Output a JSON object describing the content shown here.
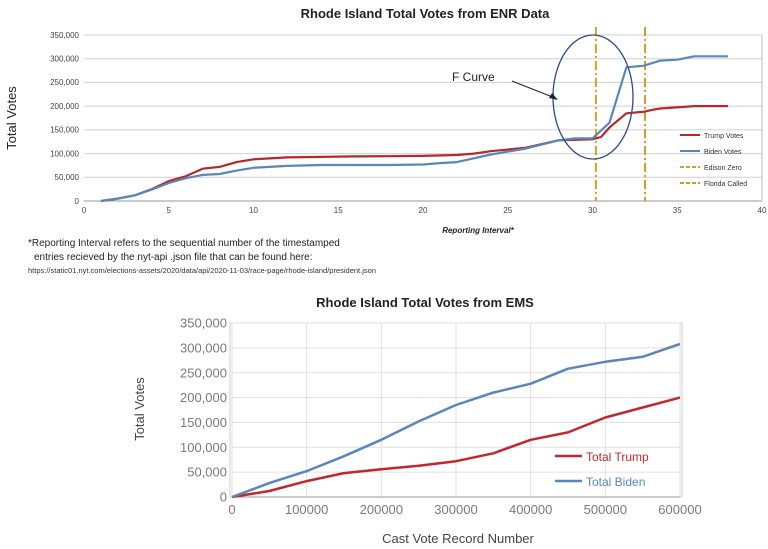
{
  "chart_data": [
    {
      "type": "line",
      "title": "Rhode Island Total Votes from ENR Data",
      "xlabel": "Reporting Interval*",
      "ylabel": "Total Votes",
      "xlim": [
        0,
        40
      ],
      "ylim": [
        0,
        350000
      ],
      "xticks": [
        "0",
        "5",
        "10",
        "15",
        "20",
        "25",
        "30",
        "35",
        "40"
      ],
      "yticks": [
        "0",
        "50,000",
        "100,000",
        "150,000",
        "200,000",
        "250,000",
        "300,000",
        "350,000"
      ],
      "grid": true,
      "legend": "right",
      "series": [
        {
          "name": "Trump Votes",
          "color": "#b5282e",
          "points": [
            [
              1,
              0
            ],
            [
              2,
              5000
            ],
            [
              3,
              12000
            ],
            [
              4,
              25000
            ],
            [
              5,
              42000
            ],
            [
              6,
              52000
            ],
            [
              7,
              68000
            ],
            [
              8,
              72000
            ],
            [
              9,
              82000
            ],
            [
              10,
              88000
            ],
            [
              12,
              92000
            ],
            [
              14,
              93000
            ],
            [
              16,
              94000
            ],
            [
              18,
              94500
            ],
            [
              20,
              95000
            ],
            [
              22,
              97000
            ],
            [
              23,
              100000
            ],
            [
              24,
              105000
            ],
            [
              26,
              112000
            ],
            [
              28,
              128000
            ],
            [
              30,
              130000
            ],
            [
              30.5,
              135000
            ],
            [
              31,
              155000
            ],
            [
              32,
              185000
            ],
            [
              33,
              188000
            ],
            [
              33.5,
              192000
            ],
            [
              34,
              195000
            ],
            [
              36,
              200000
            ],
            [
              38,
              200000
            ]
          ]
        },
        {
          "name": "Biden Votes",
          "color": "#5b86b8",
          "points": [
            [
              1,
              0
            ],
            [
              2,
              5000
            ],
            [
              3,
              12000
            ],
            [
              4,
              24000
            ],
            [
              5,
              38000
            ],
            [
              6,
              48000
            ],
            [
              7,
              55000
            ],
            [
              8,
              57000
            ],
            [
              9,
              64000
            ],
            [
              10,
              70000
            ],
            [
              12,
              74000
            ],
            [
              14,
              76000
            ],
            [
              16,
              76000
            ],
            [
              18,
              76000
            ],
            [
              20,
              77000
            ],
            [
              21,
              80000
            ],
            [
              22,
              82000
            ],
            [
              23,
              90000
            ],
            [
              24,
              98000
            ],
            [
              26,
              110000
            ],
            [
              28,
              128000
            ],
            [
              29,
              132000
            ],
            [
              30,
              132000
            ],
            [
              31,
              165000
            ],
            [
              32,
              282000
            ],
            [
              33,
              285000
            ],
            [
              34,
              296000
            ],
            [
              35,
              298000
            ],
            [
              36,
              305000
            ],
            [
              38,
              305000
            ]
          ]
        }
      ],
      "vlines": [
        {
          "name": "Edison Zero",
          "x": 30.2,
          "color": "#d4a12a"
        },
        {
          "name": "Florida Called",
          "x": 33.1,
          "color": "#d49a20"
        }
      ],
      "annotation": "F Curve"
    },
    {
      "type": "line",
      "title": "Rhode Island Total Votes from EMS",
      "xlabel": "Cast Vote Record Number",
      "ylabel": "Total Votes",
      "xlim": [
        0,
        600000
      ],
      "ylim": [
        0,
        350000
      ],
      "xticks": [
        "0",
        "100000",
        "200000",
        "300000",
        "400000",
        "500000",
        "600000"
      ],
      "yticks": [
        "0",
        "50,000",
        "100,000",
        "150,000",
        "200,000",
        "250,000",
        "300,000",
        "350,000"
      ],
      "grid": true,
      "legend": "bottom-right",
      "series": [
        {
          "name": "Total Trump",
          "color": "#c0282e",
          "points": [
            [
              0,
              0
            ],
            [
              50000,
              12000
            ],
            [
              100000,
              32000
            ],
            [
              150000,
              48000
            ],
            [
              200000,
              56000
            ],
            [
              250000,
              63000
            ],
            [
              300000,
              72000
            ],
            [
              350000,
              88000
            ],
            [
              400000,
              115000
            ],
            [
              450000,
              130000
            ],
            [
              500000,
              160000
            ],
            [
              550000,
              180000
            ],
            [
              600000,
              200000
            ]
          ]
        },
        {
          "name": "Total Biden",
          "color": "#5b86b8",
          "points": [
            [
              0,
              0
            ],
            [
              50000,
              28000
            ],
            [
              100000,
              52000
            ],
            [
              150000,
              82000
            ],
            [
              200000,
              115000
            ],
            [
              250000,
              152000
            ],
            [
              300000,
              185000
            ],
            [
              350000,
              210000
            ],
            [
              400000,
              228000
            ],
            [
              450000,
              258000
            ],
            [
              500000,
              272000
            ],
            [
              550000,
              282000
            ],
            [
              600000,
              308000
            ]
          ]
        }
      ]
    }
  ],
  "footnote": {
    "line1": "*Reporting Interval refers to the sequential number of the timestamped",
    "line2": "entries recieved by the nyt-api .json file that can be found here:",
    "url": "https://static01.nyt.com/elections-assets/2020/data/api/2020-11-03/race-page/rhode-island/president.json"
  }
}
